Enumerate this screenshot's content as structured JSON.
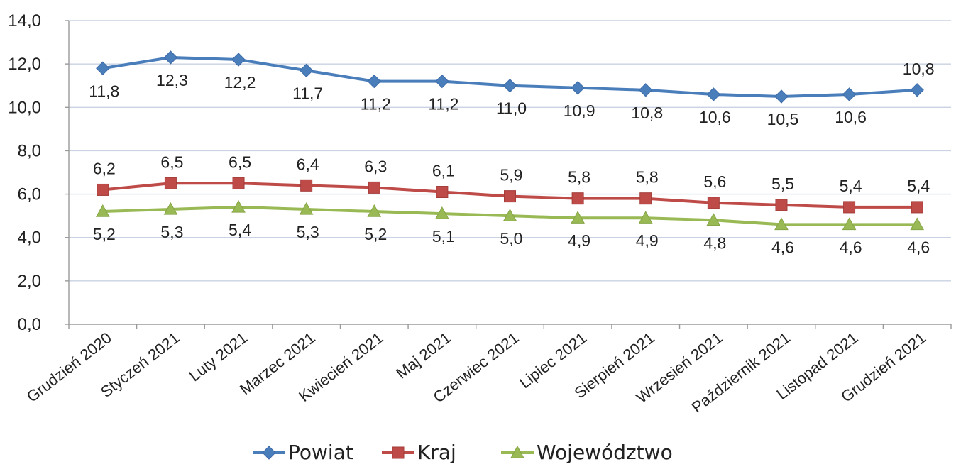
{
  "chart_data": {
    "type": "line",
    "title": "",
    "xlabel": "",
    "ylabel": "",
    "categories": [
      "Grudzień 2020",
      "Styczeń 2021",
      "Luty 2021",
      "Marzec 2021",
      "Kwiecień 2021",
      "Maj 2021",
      "Czerwiec 2021",
      "Lipiec 2021",
      "Sierpień 2021",
      "Wrzesień 2021",
      "Październik 2021",
      "Listopad 2021",
      "Grudzień 2021"
    ],
    "ylim": [
      0,
      14
    ],
    "y_ticks": [
      "0,0",
      "2,0",
      "4,0",
      "6,0",
      "8,0",
      "10,0",
      "12,0",
      "14,0"
    ],
    "grid": true,
    "legend_position": "bottom",
    "series": [
      {
        "name": "Powiat",
        "color": "#4A7EBB",
        "marker": "diamond",
        "values": [
          11.8,
          12.3,
          12.2,
          11.7,
          11.2,
          11.2,
          11.0,
          10.9,
          10.8,
          10.6,
          10.5,
          10.6,
          10.8
        ],
        "labels": [
          "11,8",
          "12,3",
          "12,2",
          "11,7",
          "11,2",
          "11,2",
          "11,0",
          "10,9",
          "10,8",
          "10,6",
          "10,5",
          "10,6",
          "10,8"
        ]
      },
      {
        "name": "Kraj",
        "color": "#BE4B48",
        "marker": "square",
        "values": [
          6.2,
          6.5,
          6.5,
          6.4,
          6.3,
          6.1,
          5.9,
          5.8,
          5.8,
          5.6,
          5.5,
          5.4,
          5.4
        ],
        "labels": [
          "6,2",
          "6,5",
          "6,5",
          "6,4",
          "6,3",
          "6,1",
          "5,9",
          "5,8",
          "5,8",
          "5,6",
          "5,5",
          "5,4",
          "5,4"
        ]
      },
      {
        "name": "Województwo",
        "color": "#98B954",
        "marker": "triangle",
        "values": [
          5.2,
          5.3,
          5.4,
          5.3,
          5.2,
          5.1,
          5.0,
          4.9,
          4.9,
          4.8,
          4.6,
          4.6,
          4.6
        ],
        "labels": [
          "5,2",
          "5,3",
          "5,4",
          "5,3",
          "5,2",
          "5,1",
          "5,0",
          "4,9",
          "4,9",
          "4,8",
          "4,6",
          "4,6",
          "4,6"
        ]
      }
    ]
  }
}
